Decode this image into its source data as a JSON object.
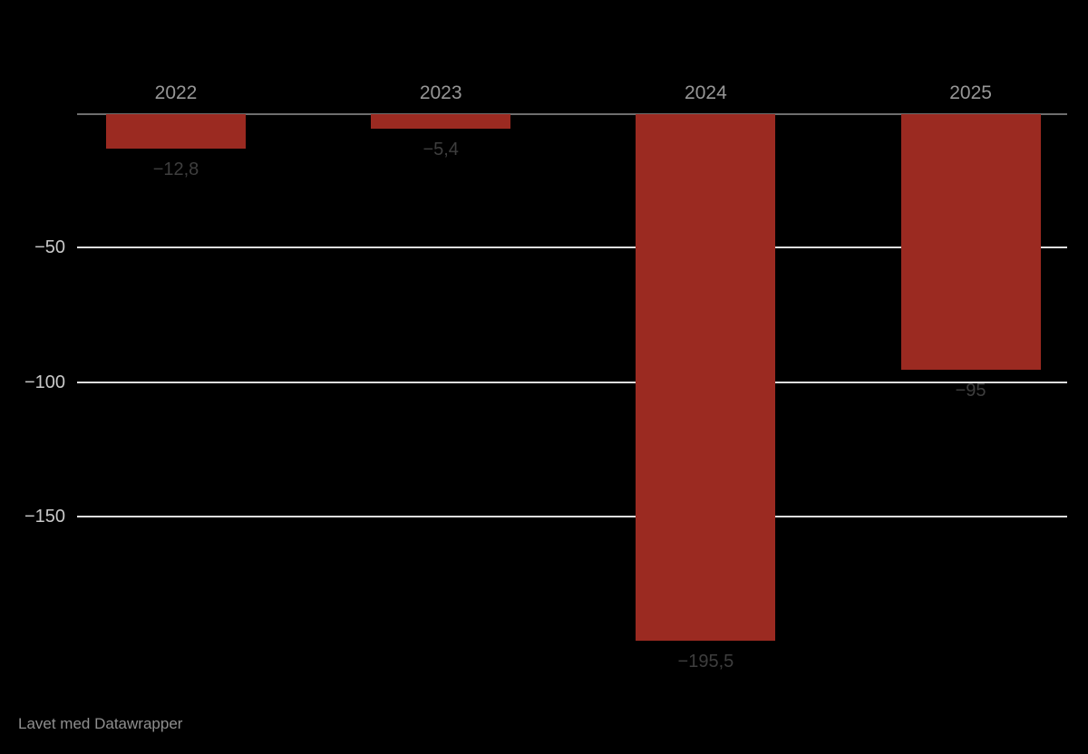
{
  "chart_data": {
    "type": "bar",
    "categories": [
      "2022",
      "2023",
      "2024",
      "2025"
    ],
    "values": [
      -12.8,
      -5.4,
      -195.5,
      -95
    ],
    "value_labels": [
      "−12,8",
      "−5,4",
      "−195,5",
      "−95"
    ],
    "title": "",
    "xlabel": "",
    "ylabel": "",
    "ylim": [
      -210,
      0
    ],
    "yticks": [
      -50,
      -100,
      -150
    ],
    "ytick_labels": [
      "−50",
      "−100",
      "−150"
    ],
    "grid": true,
    "legend": false,
    "orientation": "vertical-negative",
    "decimal_separator": ","
  },
  "colors": {
    "background": "#000000",
    "bar": "#9b2a21",
    "gridline": "#dedede",
    "zero_line": "#6e6e6e",
    "ytick_label": "#c9c9c9",
    "category_label": "#969696",
    "value_label": "#3e3e3e",
    "credit": "#8f8f8f"
  },
  "footer": {
    "credit": "Lavet med Datawrapper"
  }
}
